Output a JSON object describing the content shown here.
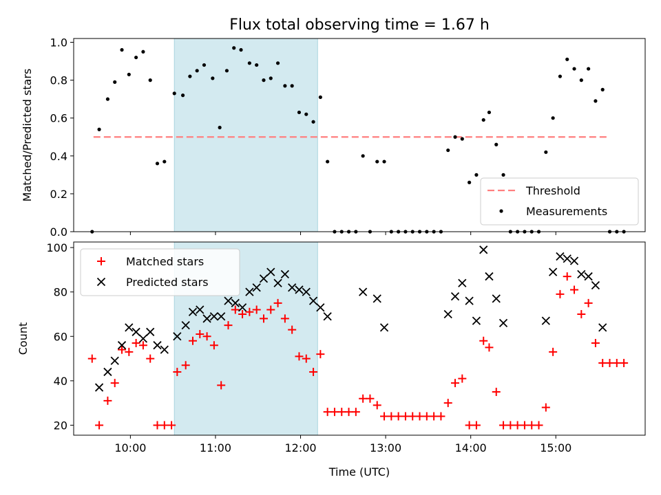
{
  "figure": {
    "title": "Flux total observing time = 1.67 h"
  },
  "chart_data": [
    {
      "type": "scatter",
      "ylabel": "Matched/Predicted stars",
      "ylim": [
        0,
        1.02
      ],
      "yticks": [
        0.0,
        0.2,
        0.4,
        0.6,
        0.8,
        1.0
      ],
      "ytick_labels": [
        "0.0",
        "0.2",
        "0.4",
        "0.6",
        "0.8",
        "1.0"
      ],
      "xlim": [
        "09:20",
        "16:03"
      ],
      "shaded_span": [
        "10:31",
        "12:12"
      ],
      "shaded_color": "#d3eaf0",
      "legend": {
        "placement": "lower-right",
        "entries": [
          {
            "label": "Threshold",
            "marker": "dashed-line",
            "color": "#ff7f7f"
          },
          {
            "label": "Measurements",
            "marker": "dot",
            "color": "#000000"
          }
        ]
      },
      "threshold": {
        "name": "Threshold",
        "value": 0.5,
        "x_range": [
          "09:34",
          "15:38"
        ],
        "color": "#ff7f7f"
      },
      "series": [
        {
          "name": "Measurements",
          "color": "#000000",
          "points": [
            [
              "09:33",
              0.0
            ],
            [
              "09:38",
              0.54
            ],
            [
              "09:44",
              0.7
            ],
            [
              "09:49",
              0.79
            ],
            [
              "09:54",
              0.96
            ],
            [
              "09:59",
              0.83
            ],
            [
              "10:04",
              0.92
            ],
            [
              "10:09",
              0.95
            ],
            [
              "10:14",
              0.8
            ],
            [
              "10:19",
              0.36
            ],
            [
              "10:24",
              0.37
            ],
            [
              "10:31",
              0.73
            ],
            [
              "10:37",
              0.72
            ],
            [
              "10:42",
              0.82
            ],
            [
              "10:47",
              0.85
            ],
            [
              "10:52",
              0.88
            ],
            [
              "10:58",
              0.81
            ],
            [
              "11:03",
              0.55
            ],
            [
              "11:08",
              0.85
            ],
            [
              "11:13",
              0.97
            ],
            [
              "11:18",
              0.96
            ],
            [
              "11:24",
              0.89
            ],
            [
              "11:29",
              0.88
            ],
            [
              "11:34",
              0.8
            ],
            [
              "11:39",
              0.81
            ],
            [
              "11:44",
              0.89
            ],
            [
              "11:49",
              0.77
            ],
            [
              "11:54",
              0.77
            ],
            [
              "11:59",
              0.63
            ],
            [
              "12:04",
              0.62
            ],
            [
              "12:09",
              0.58
            ],
            [
              "12:14",
              0.71
            ],
            [
              "12:19",
              0.37
            ],
            [
              "12:24",
              0.0
            ],
            [
              "12:29",
              0.0
            ],
            [
              "12:34",
              0.0
            ],
            [
              "12:39",
              0.0
            ],
            [
              "12:44",
              0.4
            ],
            [
              "12:49",
              0.0
            ],
            [
              "12:54",
              0.37
            ],
            [
              "12:59",
              0.37
            ],
            [
              "13:04",
              0.0
            ],
            [
              "13:09",
              0.0
            ],
            [
              "13:14",
              0.0
            ],
            [
              "13:19",
              0.0
            ],
            [
              "13:24",
              0.0
            ],
            [
              "13:29",
              0.0
            ],
            [
              "13:34",
              0.0
            ],
            [
              "13:39",
              0.0
            ],
            [
              "13:44",
              0.43
            ],
            [
              "13:49",
              0.5
            ],
            [
              "13:54",
              0.49
            ],
            [
              "13:59",
              0.26
            ],
            [
              "14:04",
              0.3
            ],
            [
              "14:09",
              0.59
            ],
            [
              "14:13",
              0.63
            ],
            [
              "14:18",
              0.46
            ],
            [
              "14:23",
              0.3
            ],
            [
              "14:28",
              0.0
            ],
            [
              "14:33",
              0.0
            ],
            [
              "14:38",
              0.0
            ],
            [
              "14:43",
              0.0
            ],
            [
              "14:48",
              0.0
            ],
            [
              "14:53",
              0.42
            ],
            [
              "14:58",
              0.6
            ],
            [
              "15:03",
              0.82
            ],
            [
              "15:08",
              0.91
            ],
            [
              "15:13",
              0.86
            ],
            [
              "15:18",
              0.8
            ],
            [
              "15:23",
              0.86
            ],
            [
              "15:28",
              0.69
            ],
            [
              "15:33",
              0.75
            ],
            [
              "15:38",
              0.0
            ],
            [
              "15:43",
              0.0
            ],
            [
              "15:48",
              0.0
            ]
          ]
        }
      ]
    },
    {
      "type": "scatter",
      "xlabel": "Time (UTC)",
      "ylabel": "Count",
      "ylim": [
        15.5,
        102.5
      ],
      "yticks": [
        20,
        40,
        60,
        80,
        100
      ],
      "ytick_labels": [
        "20",
        "40",
        "60",
        "80",
        "100"
      ],
      "xlim": [
        "09:20",
        "16:03"
      ],
      "xticks": [
        "10:00",
        "11:00",
        "12:00",
        "13:00",
        "14:00",
        "15:00"
      ],
      "xtick_labels": [
        "10:00",
        "11:00",
        "12:00",
        "13:00",
        "14:00",
        "15:00"
      ],
      "shaded_span": [
        "10:31",
        "12:12"
      ],
      "shaded_color": "#d3eaf0",
      "legend": {
        "placement": "upper-left",
        "entries": [
          {
            "label": "Matched stars",
            "marker": "plus",
            "color": "#ff0000"
          },
          {
            "label": "Predicted stars",
            "marker": "x",
            "color": "#000000"
          }
        ]
      },
      "series": [
        {
          "name": "Matched stars",
          "color": "#ff0000",
          "marker": "plus",
          "points": [
            [
              "09:33",
              50
            ],
            [
              "09:38",
              20
            ],
            [
              "09:44",
              31
            ],
            [
              "09:49",
              39
            ],
            [
              "09:54",
              54
            ],
            [
              "09:59",
              53
            ],
            [
              "10:04",
              57
            ],
            [
              "10:09",
              56
            ],
            [
              "10:14",
              50
            ],
            [
              "10:19",
              20
            ],
            [
              "10:24",
              20
            ],
            [
              "10:29",
              20
            ],
            [
              "10:33",
              44
            ],
            [
              "10:39",
              47
            ],
            [
              "10:44",
              58
            ],
            [
              "10:49",
              61
            ],
            [
              "10:54",
              60
            ],
            [
              "10:59",
              56
            ],
            [
              "11:04",
              38
            ],
            [
              "11:09",
              65
            ],
            [
              "11:14",
              72
            ],
            [
              "11:19",
              70
            ],
            [
              "11:24",
              71
            ],
            [
              "11:29",
              72
            ],
            [
              "11:34",
              68
            ],
            [
              "11:39",
              72
            ],
            [
              "11:44",
              75
            ],
            [
              "11:49",
              68
            ],
            [
              "11:54",
              63
            ],
            [
              "11:59",
              51
            ],
            [
              "12:04",
              50
            ],
            [
              "12:09",
              44
            ],
            [
              "12:14",
              52
            ],
            [
              "12:19",
              26
            ],
            [
              "12:24",
              26
            ],
            [
              "12:29",
              26
            ],
            [
              "12:34",
              26
            ],
            [
              "12:39",
              26
            ],
            [
              "12:44",
              32
            ],
            [
              "12:49",
              32
            ],
            [
              "12:54",
              29
            ],
            [
              "12:59",
              24
            ],
            [
              "13:04",
              24
            ],
            [
              "13:09",
              24
            ],
            [
              "13:14",
              24
            ],
            [
              "13:19",
              24
            ],
            [
              "13:24",
              24
            ],
            [
              "13:29",
              24
            ],
            [
              "13:34",
              24
            ],
            [
              "13:39",
              24
            ],
            [
              "13:44",
              30
            ],
            [
              "13:49",
              39
            ],
            [
              "13:54",
              41
            ],
            [
              "13:59",
              20
            ],
            [
              "14:04",
              20
            ],
            [
              "14:09",
              58
            ],
            [
              "14:13",
              55
            ],
            [
              "14:18",
              35
            ],
            [
              "14:23",
              20
            ],
            [
              "14:28",
              20
            ],
            [
              "14:33",
              20
            ],
            [
              "14:38",
              20
            ],
            [
              "14:43",
              20
            ],
            [
              "14:48",
              20
            ],
            [
              "14:53",
              28
            ],
            [
              "14:58",
              53
            ],
            [
              "15:03",
              79
            ],
            [
              "15:08",
              87
            ],
            [
              "15:13",
              81
            ],
            [
              "15:18",
              70
            ],
            [
              "15:23",
              75
            ],
            [
              "15:28",
              57
            ],
            [
              "15:33",
              48
            ],
            [
              "15:38",
              48
            ],
            [
              "15:43",
              48
            ],
            [
              "15:48",
              48
            ]
          ]
        },
        {
          "name": "Predicted stars",
          "color": "#000000",
          "marker": "x",
          "points": [
            [
              "09:38",
              37
            ],
            [
              "09:44",
              44
            ],
            [
              "09:49",
              49
            ],
            [
              "09:54",
              56
            ],
            [
              "09:59",
              64
            ],
            [
              "10:04",
              62
            ],
            [
              "10:09",
              59
            ],
            [
              "10:14",
              62
            ],
            [
              "10:19",
              56
            ],
            [
              "10:24",
              54
            ],
            [
              "10:33",
              60
            ],
            [
              "10:39",
              65
            ],
            [
              "10:44",
              71
            ],
            [
              "10:49",
              72
            ],
            [
              "10:54",
              68
            ],
            [
              "10:59",
              69
            ],
            [
              "11:04",
              69
            ],
            [
              "11:09",
              76
            ],
            [
              "11:14",
              75
            ],
            [
              "11:19",
              73
            ],
            [
              "11:24",
              80
            ],
            [
              "11:29",
              82
            ],
            [
              "11:34",
              86
            ],
            [
              "11:39",
              89
            ],
            [
              "11:44",
              84
            ],
            [
              "11:49",
              88
            ],
            [
              "11:54",
              82
            ],
            [
              "11:59",
              81
            ],
            [
              "12:04",
              80
            ],
            [
              "12:09",
              76
            ],
            [
              "12:14",
              73
            ],
            [
              "12:19",
              69
            ],
            [
              "12:44",
              80
            ],
            [
              "12:54",
              77
            ],
            [
              "12:59",
              64
            ],
            [
              "13:44",
              70
            ],
            [
              "13:49",
              78
            ],
            [
              "13:54",
              84
            ],
            [
              "13:59",
              76
            ],
            [
              "14:04",
              67
            ],
            [
              "14:09",
              99
            ],
            [
              "14:13",
              87
            ],
            [
              "14:18",
              77
            ],
            [
              "14:23",
              66
            ],
            [
              "14:53",
              67
            ],
            [
              "14:58",
              89
            ],
            [
              "15:03",
              96
            ],
            [
              "15:08",
              95
            ],
            [
              "15:13",
              94
            ],
            [
              "15:18",
              88
            ],
            [
              "15:23",
              87
            ],
            [
              "15:28",
              83
            ],
            [
              "15:33",
              64
            ]
          ]
        }
      ]
    }
  ]
}
